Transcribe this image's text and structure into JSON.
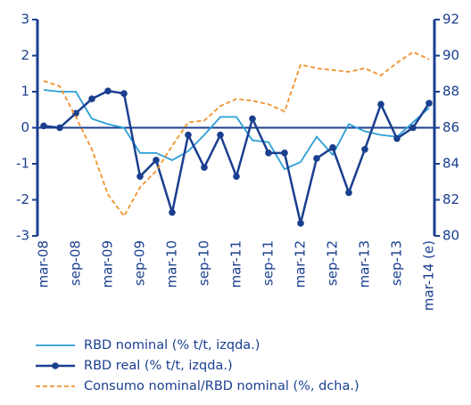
{
  "chart_data": {
    "type": "line",
    "categories": [
      "mar-08",
      null,
      "sep-08",
      null,
      "mar-09",
      null,
      "sep-09",
      null,
      "mar-10",
      null,
      "sep-10",
      null,
      "mar-11",
      null,
      "sep-11",
      null,
      "mar-12",
      null,
      "sep-12",
      null,
      "mar-13",
      null,
      "sep-13",
      null,
      "mar-14 (e)"
    ],
    "ylim": [
      -3,
      3
    ],
    "yticks": [
      -3,
      -2,
      -1,
      0,
      1,
      2,
      3
    ],
    "y2lim": [
      80,
      92
    ],
    "y2ticks": [
      80,
      82,
      84,
      86,
      88,
      90,
      92
    ],
    "series": [
      {
        "name": "RBD nominal (% t/t, izqda.)",
        "color": "#2a9fd6",
        "markers": false,
        "dashed": false,
        "values": [
          1.05,
          1.0,
          1.0,
          0.25,
          0.1,
          0.0,
          -0.7,
          -0.7,
          -0.9,
          -0.65,
          -0.2,
          0.3,
          0.3,
          -0.35,
          -0.4,
          -1.15,
          -0.95,
          -0.25,
          -0.75,
          0.1,
          -0.1,
          -0.2,
          -0.25,
          0.15,
          0.55
        ]
      },
      {
        "name": "RBD real (% t/t, izqda.)",
        "color": "#1a3f8f",
        "markers": true,
        "dashed": false,
        "values": [
          0.05,
          0.0,
          0.4,
          0.8,
          1.02,
          0.95,
          -1.35,
          -0.9,
          -2.35,
          -0.2,
          -1.1,
          -0.2,
          -1.35,
          0.25,
          -0.7,
          -0.7,
          -2.65,
          -0.85,
          -0.55,
          -1.8,
          -0.6,
          0.65,
          -0.3,
          0.0,
          0.68
        ]
      },
      {
        "name": "Consumo nominal/RBD nominal (%, dcha.)",
        "color": "#f0922b",
        "markers": false,
        "dashed": true,
        "axis": "y2",
        "values": [
          88.6,
          88.3,
          86.6,
          84.8,
          82.3,
          81.1,
          82.7,
          83.6,
          85.0,
          86.3,
          86.4,
          87.2,
          87.6,
          87.5,
          87.3,
          86.9,
          89.5,
          89.3,
          89.2,
          89.1,
          89.3,
          88.9,
          89.6,
          90.2,
          89.8
        ]
      }
    ]
  }
}
